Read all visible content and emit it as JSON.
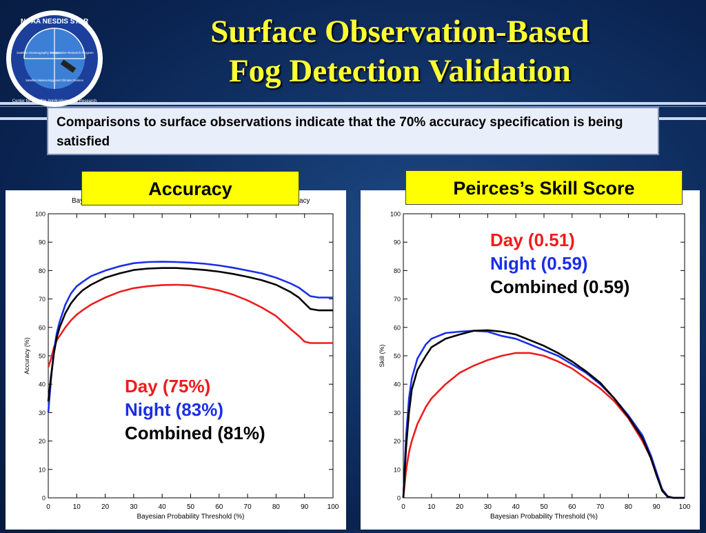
{
  "title_line1": "Surface Observation-Based",
  "title_line2": "Fog Detection Validation",
  "logo": {
    "text_top": "NOAA NESDIS STAR",
    "text_ring": "Center for Satellite Applications and Research",
    "d1": "Satellite Oceanography Division",
    "d2": "Cooperative Research Program",
    "d3": "Satellite Meteorology and Climate Division"
  },
  "note": "Comparisons to surface observations indicate that the 70% accuracy specification is being satisfied",
  "colors": {
    "day": "#ee1c1c",
    "night": "#1a2ee8",
    "combined": "#000000",
    "label_bg": "#ffff00",
    "title": "#ffff33"
  },
  "chart_data": [
    {
      "type": "line",
      "label": "Accuracy",
      "plot_title_fragment_left": "Bay",
      "plot_title_fragment_right": "acy",
      "xlabel": "Bayesian Probability Threshold (%)",
      "ylabel": "Accuracy (%)",
      "xlim": [
        0,
        100
      ],
      "ylim": [
        0,
        100
      ],
      "xticks": [
        0,
        10,
        20,
        30,
        40,
        50,
        60,
        70,
        80,
        90,
        100
      ],
      "yticks": [
        0,
        10,
        20,
        30,
        40,
        50,
        60,
        70,
        80,
        90,
        100
      ],
      "annotations": {
        "day": "Day (75%)",
        "night": "Night (83%)",
        "combined": "Combined (81%)"
      },
      "series": [
        {
          "key": "day",
          "x": [
            0,
            1,
            2,
            3,
            4,
            6,
            8,
            10,
            12,
            15,
            20,
            25,
            30,
            35,
            40,
            45,
            50,
            55,
            60,
            65,
            70,
            75,
            80,
            85,
            88,
            90,
            92,
            95,
            100
          ],
          "y": [
            46,
            49,
            53,
            55.5,
            57,
            60,
            62.5,
            64.5,
            66,
            68,
            70.5,
            72.5,
            73.8,
            74.5,
            74.9,
            75,
            74.8,
            74,
            73,
            71.5,
            69.5,
            67,
            64,
            59.5,
            57,
            55,
            54.5,
            54.5,
            54.5
          ]
        },
        {
          "key": "night",
          "x": [
            0,
            1,
            2,
            3,
            4,
            6,
            8,
            10,
            12,
            15,
            20,
            25,
            30,
            35,
            40,
            45,
            50,
            55,
            60,
            65,
            70,
            75,
            80,
            85,
            88,
            90,
            92,
            95,
            100
          ],
          "y": [
            30,
            42,
            52,
            58,
            62,
            68,
            72,
            74.5,
            76,
            78,
            80,
            81.5,
            82.6,
            83,
            83.1,
            83,
            82.8,
            82.4,
            81.8,
            81,
            80,
            79,
            77.5,
            75.5,
            74,
            72.5,
            71,
            70.5,
            70.5
          ]
        },
        {
          "key": "combined",
          "x": [
            0,
            1,
            2,
            3,
            4,
            6,
            8,
            10,
            12,
            15,
            20,
            25,
            30,
            35,
            40,
            45,
            50,
            55,
            60,
            65,
            70,
            75,
            80,
            85,
            88,
            90,
            92,
            95,
            100
          ],
          "y": [
            34,
            43,
            51,
            56.5,
            60,
            65,
            68.5,
            71,
            73,
            75,
            77.5,
            79,
            80.2,
            80.7,
            80.9,
            80.9,
            80.6,
            80.2,
            79.6,
            78.8,
            77.8,
            76.6,
            75,
            72.5,
            70.5,
            68.5,
            66.5,
            66,
            66
          ]
        }
      ]
    },
    {
      "type": "line",
      "label": "Peirces’s Skill Score",
      "xlabel": "Bayesian Probability Threshold (%)",
      "ylabel": "Skill (%)",
      "xlim": [
        0,
        100
      ],
      "ylim": [
        0,
        100
      ],
      "xticks": [
        0,
        10,
        20,
        30,
        40,
        50,
        60,
        70,
        80,
        90,
        100
      ],
      "yticks": [
        0,
        10,
        20,
        30,
        40,
        50,
        60,
        70,
        80,
        90,
        100
      ],
      "annotations": {
        "day": "Day (0.51)",
        "night": "Night (0.59)",
        "combined": "Combined (0.59)"
      },
      "series": [
        {
          "key": "day",
          "x": [
            0,
            1,
            2,
            3,
            5,
            8,
            10,
            15,
            20,
            25,
            30,
            35,
            40,
            45,
            50,
            55,
            60,
            65,
            70,
            75,
            80,
            85,
            88,
            90,
            92,
            94,
            96,
            100
          ],
          "y": [
            0,
            10,
            16,
            20,
            26,
            32,
            35,
            40,
            44,
            46.5,
            48.5,
            50,
            51,
            51,
            50,
            48,
            45.5,
            42,
            38.5,
            34,
            28,
            20,
            14,
            8,
            3,
            0.5,
            0,
            0
          ]
        },
        {
          "key": "night",
          "x": [
            0,
            1,
            2,
            3,
            5,
            8,
            10,
            15,
            20,
            25,
            30,
            35,
            40,
            45,
            50,
            55,
            60,
            65,
            70,
            75,
            80,
            85,
            88,
            90,
            92,
            94,
            96,
            100
          ],
          "y": [
            0,
            22,
            35,
            42,
            49,
            54,
            56,
            58,
            58.5,
            58.8,
            58.5,
            57,
            56,
            54,
            52,
            50,
            47,
            44,
            40,
            35,
            29,
            22,
            15,
            9,
            3,
            0.5,
            0,
            0
          ]
        },
        {
          "key": "combined",
          "x": [
            0,
            1,
            2,
            3,
            5,
            8,
            10,
            15,
            20,
            25,
            30,
            35,
            40,
            45,
            50,
            55,
            60,
            65,
            70,
            75,
            80,
            85,
            88,
            90,
            92,
            94,
            96,
            100
          ],
          "y": [
            0,
            18,
            30,
            38,
            45,
            50,
            53,
            56,
            57.5,
            58.8,
            59,
            58.5,
            57.5,
            55.5,
            53.5,
            51,
            48,
            44.5,
            40.5,
            35,
            28.5,
            21,
            14,
            8,
            2.5,
            0.3,
            0,
            0
          ]
        }
      ]
    }
  ]
}
